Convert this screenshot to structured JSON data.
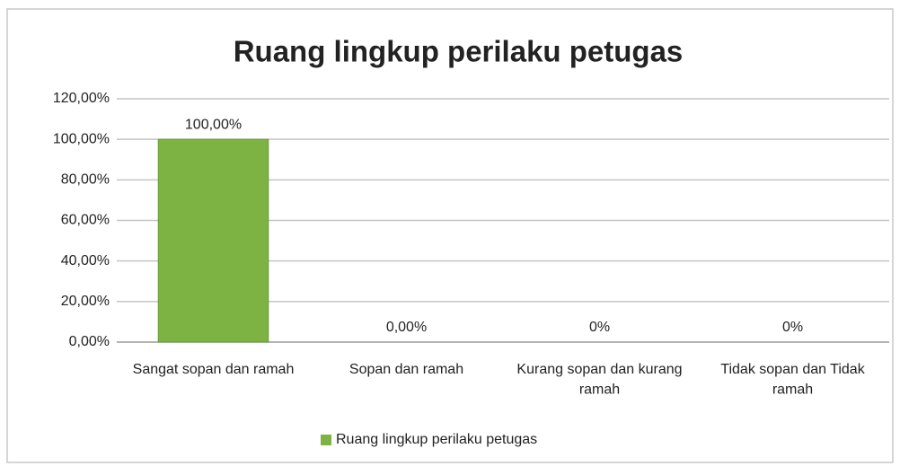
{
  "chart_data": {
    "type": "bar",
    "title": "Ruang lingkup perilaku petugas",
    "categories": [
      "Sangat sopan dan ramah",
      "Sopan dan ramah",
      "Kurang sopan dan kurang ramah",
      "Tidak sopan dan Tidak ramah"
    ],
    "series": [
      {
        "name": "Ruang lingkup perilaku petugas",
        "color": "#7cb342",
        "values": [
          100,
          0,
          0,
          0
        ],
        "value_labels": [
          "100,00%",
          "0,00%",
          "0%",
          "0%"
        ]
      }
    ],
    "ylim": [
      0,
      120
    ],
    "yticks": [
      {
        "value": 0,
        "label": "0,00%"
      },
      {
        "value": 20,
        "label": "20,00%"
      },
      {
        "value": 40,
        "label": "40,00%"
      },
      {
        "value": 60,
        "label": "60,00%"
      },
      {
        "value": 80,
        "label": "80,00%"
      },
      {
        "value": 100,
        "label": "100,00%"
      },
      {
        "value": 120,
        "label": "120,00%"
      }
    ],
    "grid": true,
    "legend": "bottom"
  }
}
